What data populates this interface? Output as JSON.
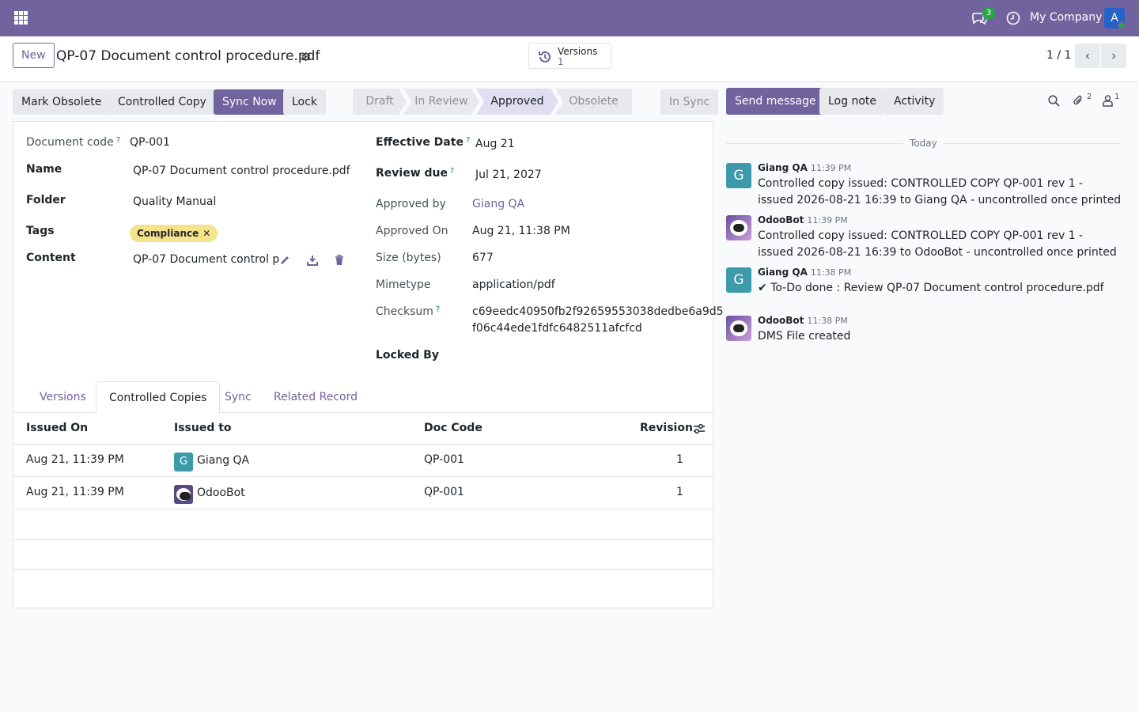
{
  "navbar": {
    "chat_badge": "3",
    "company": "My Company",
    "avatar_letter": "A"
  },
  "control": {
    "new_label": "New",
    "record_title": "QP-07 Document control procedure.pdf",
    "versions_label": "Versions",
    "versions_count": "1",
    "pager": "1 / 1"
  },
  "actions": {
    "mark_obsolete": "Mark Obsolete",
    "controlled_copy": "Controlled Copy",
    "sync_now": "Sync Now",
    "lock": "Lock",
    "in_sync": "In Sync"
  },
  "status": {
    "stages": [
      "Draft",
      "In Review",
      "Approved",
      "Obsolete"
    ],
    "active": "Approved"
  },
  "form": {
    "left": {
      "document_code_label": "Document code",
      "document_code": "QP-001",
      "name_label": "Name",
      "name": "QP-07 Document control procedure.pdf",
      "folder_label": "Folder",
      "folder": "Quality Manual",
      "tags_label": "Tags",
      "tag": "Compliance",
      "content_label": "Content",
      "content": "QP-07 Document control p"
    },
    "right": {
      "effective_date_label": "Effective Date",
      "effective_date": "Aug 21",
      "review_due_label": "Review due",
      "review_due": "Jul 21, 2027",
      "approved_by_label": "Approved by",
      "approved_by": "Giang QA",
      "approved_on_label": "Approved On",
      "approved_on": "Aug 21, 11:38 PM",
      "size_label": "Size (bytes)",
      "size": "677",
      "mimetype_label": "Mimetype",
      "mimetype": "application/pdf",
      "checksum_label": "Checksum",
      "checksum_line1": "c69eedc40950fb2f92659553038dedbe6a9d5",
      "checksum_line2": "f06c44ede1fdfc6482511afcfcd",
      "locked_by_label": "Locked By"
    }
  },
  "tabs": [
    "Versions",
    "Controlled Copies",
    "Sync",
    "Related Record"
  ],
  "table": {
    "headers": [
      "Issued On",
      "Issued to",
      "Doc Code",
      "Revision"
    ],
    "rows": [
      {
        "issued_on": "Aug 21, 11:39 PM",
        "avatar": "G",
        "issued_to": "Giang QA",
        "doc_code": "QP-001",
        "revision": "1"
      },
      {
        "issued_on": "Aug 21, 11:39 PM",
        "avatar": "",
        "issued_to": "OdooBot",
        "doc_code": "QP-001",
        "revision": "1"
      }
    ]
  },
  "chatter": {
    "send_message": "Send message",
    "log_note": "Log note",
    "activity": "Activity",
    "attachments_count": "2",
    "followers_count": "1",
    "date_separator": "Today",
    "messages": [
      {
        "avatar": "G",
        "author": "Giang QA",
        "time": "11:39 PM",
        "body": "Controlled copy issued: CONTROLLED COPY QP-001 rev 1 - issued 2026-08-21 16:39 to Giang QA - uncontrolled once printed"
      },
      {
        "avatar": "",
        "author": "OdooBot",
        "time": "11:39 PM",
        "body": "Controlled copy issued: CONTROLLED COPY QP-001 rev 1 - issued 2026-08-21 16:39 to OdooBot - uncontrolled once printed"
      },
      {
        "avatar": "G",
        "author": "Giang QA",
        "time": "11:38 PM",
        "body": "To-Do done : Review QP-07 Document control procedure.pdf"
      },
      {
        "avatar": "",
        "author": "OdooBot",
        "time": "11:38 PM",
        "body": "DMS File created"
      }
    ]
  },
  "colors": {
    "brand": "#71639e",
    "tag_bg": "#f4e38a",
    "badge": "#28a745"
  }
}
